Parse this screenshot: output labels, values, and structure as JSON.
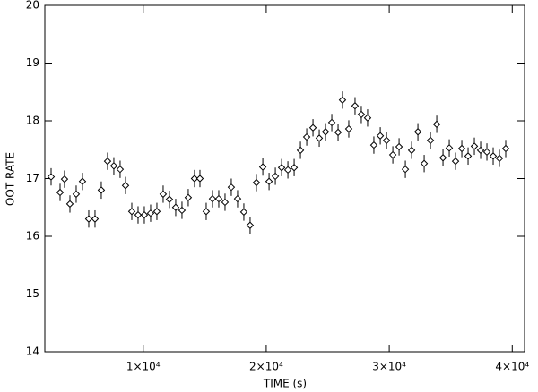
{
  "chart_data": {
    "type": "scatter",
    "xlabel": "TIME (s)",
    "ylabel": "OOT RATE",
    "x": [
      2510,
      3240,
      3600,
      4040,
      4550,
      5060,
      5570,
      6080,
      6590,
      7100,
      7610,
      8120,
      8560,
      9070,
      9580,
      10090,
      10600,
      11110,
      11620,
      12130,
      12640,
      13150,
      13660,
      14170,
      14610,
      15120,
      15630,
      16140,
      16650,
      17160,
      17670,
      18180,
      18690,
      19200,
      19720,
      20230,
      20740,
      21250,
      21760,
      22270,
      22780,
      23290,
      23800,
      24310,
      24820,
      25330,
      25840,
      26200,
      26710,
      27220,
      27730,
      28240,
      28750,
      29270,
      29780,
      30290,
      30800,
      31310,
      31820,
      32330,
      32840,
      33350,
      33860,
      34370,
      34880,
      35390,
      35900,
      36410,
      36920,
      37430,
      37940,
      38450,
      38960,
      39470
    ],
    "y": [
      17.03,
      16.76,
      16.99,
      16.56,
      16.73,
      16.95,
      16.3,
      16.3,
      16.8,
      17.3,
      17.22,
      17.16,
      16.88,
      16.43,
      16.37,
      16.37,
      16.4,
      16.43,
      16.73,
      16.64,
      16.5,
      16.45,
      16.67,
      17.0,
      17.0,
      16.43,
      16.65,
      16.65,
      16.59,
      16.85,
      16.65,
      16.42,
      16.19,
      16.93,
      17.2,
      16.95,
      17.04,
      17.19,
      17.15,
      17.19,
      17.49,
      17.72,
      17.88,
      17.7,
      17.81,
      17.97,
      17.8,
      18.36,
      17.86,
      18.26,
      18.11,
      18.05,
      17.58,
      17.74,
      17.66,
      17.41,
      17.55,
      17.16,
      17.49,
      17.81,
      17.26,
      17.66,
      17.94,
      17.36,
      17.53,
      17.3,
      17.52,
      17.39,
      17.56,
      17.49,
      17.46,
      17.39,
      17.35,
      17.52
    ],
    "errors": [
      0.15,
      0.15,
      0.15,
      0.15,
      0.15,
      0.15,
      0.15,
      0.15,
      0.15,
      0.15,
      0.15,
      0.15,
      0.15,
      0.15,
      0.15,
      0.15,
      0.15,
      0.15,
      0.15,
      0.15,
      0.15,
      0.15,
      0.15,
      0.15,
      0.15,
      0.15,
      0.15,
      0.15,
      0.15,
      0.15,
      0.15,
      0.15,
      0.15,
      0.15,
      0.15,
      0.15,
      0.15,
      0.15,
      0.15,
      0.15,
      0.15,
      0.15,
      0.15,
      0.15,
      0.15,
      0.15,
      0.15,
      0.15,
      0.15,
      0.15,
      0.15,
      0.15,
      0.15,
      0.15,
      0.15,
      0.15,
      0.15,
      0.15,
      0.15,
      0.15,
      0.15,
      0.15,
      0.15,
      0.15,
      0.15,
      0.15,
      0.15,
      0.15,
      0.15,
      0.15,
      0.15,
      0.15,
      0.15,
      0.15
    ],
    "color": "#000000",
    "xlim": [
      2000,
      41000
    ],
    "ylim": [
      14,
      20
    ],
    "xticks": [
      {
        "value": 10000,
        "label": "1×10⁴"
      },
      {
        "value": 20000,
        "label": "2×10⁴"
      },
      {
        "value": 30000,
        "label": "3×10⁴"
      },
      {
        "value": 40000,
        "label": "4×10⁴"
      }
    ],
    "yticks": [
      14,
      15,
      16,
      17,
      18,
      19,
      20
    ]
  }
}
